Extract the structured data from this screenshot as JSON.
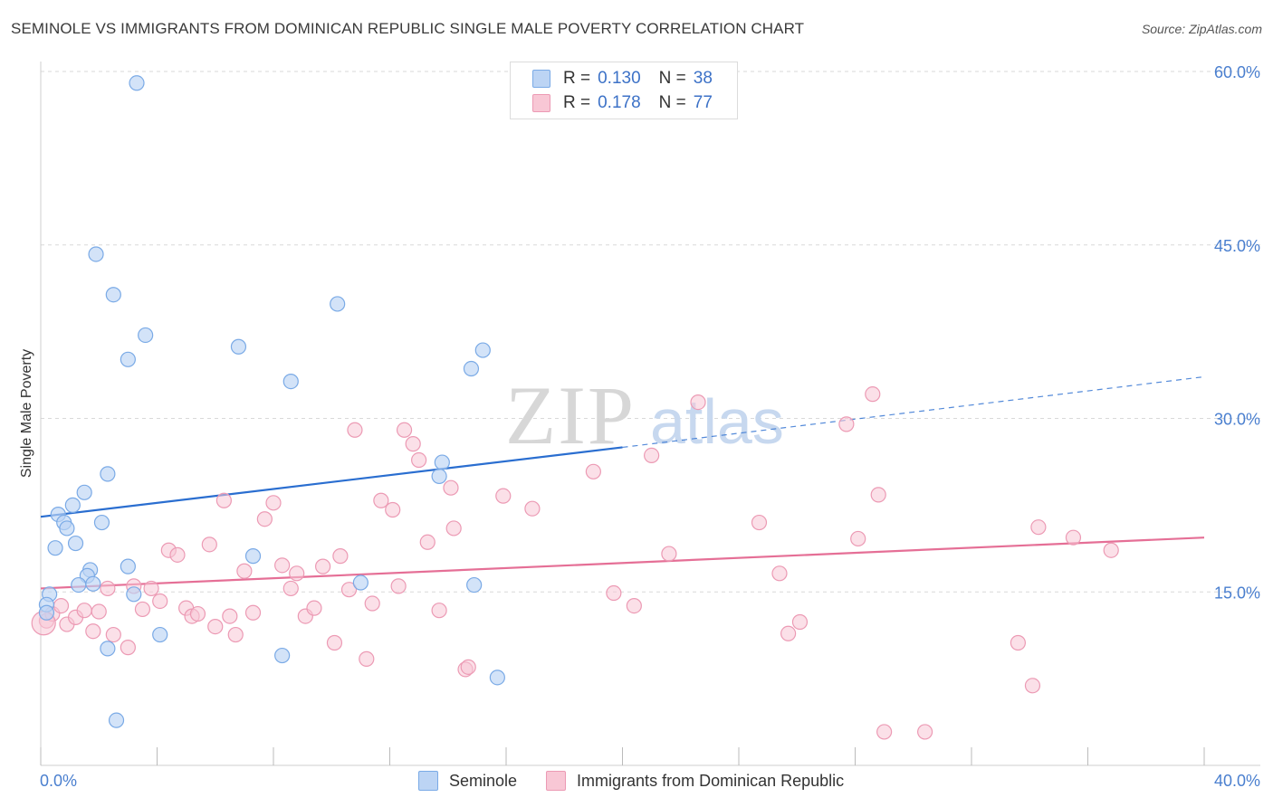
{
  "title": "SEMINOLE VS IMMIGRANTS FROM DOMINICAN REPUBLIC SINGLE MALE POVERTY CORRELATION CHART",
  "source": "Source: ZipAtlas.com",
  "watermark": {
    "zip": "ZIP",
    "atlas": "atlas"
  },
  "legend": {
    "r_label": "R =",
    "n_label": "N =",
    "rows": [
      {
        "r": "0.130",
        "n": "38"
      },
      {
        "r": "0.178",
        "n": "77"
      }
    ]
  },
  "colors": {
    "blue_fill": "#bcd4f4",
    "blue_stroke": "#7aaae6",
    "blue_line": "#2a6ed0",
    "pink_fill": "#f8c7d5",
    "pink_stroke": "#ec9ab4",
    "pink_line": "#e56f96",
    "tick_text": "#4a7fcf",
    "grid": "#d9d9d9"
  },
  "chart_data": {
    "type": "scatter",
    "title": "SEMINOLE VS IMMIGRANTS FROM DOMINICAN REPUBLIC SINGLE MALE POVERTY CORRELATION CHART",
    "xlabel": "",
    "ylabel": "Single Male Poverty",
    "xlim": [
      0,
      40
    ],
    "ylim": [
      0,
      60
    ],
    "x_tick_labels": [
      "0.0%",
      "40.0%"
    ],
    "y_ticks": [
      15,
      30,
      45,
      60
    ],
    "y_tick_labels": [
      "15.0%",
      "30.0%",
      "45.0%",
      "60.0%"
    ],
    "series": [
      {
        "name": "Seminole",
        "r": 0.13,
        "n": 38,
        "trend": {
          "x0": 0,
          "y0": 21.5,
          "x1": 20,
          "y1": 27.5,
          "dash_x1": 40,
          "dash_y1": 33.6
        },
        "points": [
          [
            3.3,
            59.0
          ],
          [
            1.9,
            44.2
          ],
          [
            2.5,
            40.7
          ],
          [
            3.6,
            37.2
          ],
          [
            3.0,
            35.1
          ],
          [
            6.8,
            36.2
          ],
          [
            10.2,
            39.9
          ],
          [
            8.6,
            33.2
          ],
          [
            15.2,
            35.9
          ],
          [
            14.8,
            34.3
          ],
          [
            13.8,
            26.2
          ],
          [
            13.7,
            25.0
          ],
          [
            2.3,
            25.2
          ],
          [
            1.5,
            23.6
          ],
          [
            1.1,
            22.5
          ],
          [
            0.6,
            21.7
          ],
          [
            0.8,
            21.0
          ],
          [
            0.9,
            20.5
          ],
          [
            2.1,
            21.0
          ],
          [
            1.2,
            19.2
          ],
          [
            0.5,
            18.8
          ],
          [
            7.3,
            18.1
          ],
          [
            3.0,
            17.2
          ],
          [
            1.7,
            16.9
          ],
          [
            1.6,
            16.4
          ],
          [
            1.3,
            15.6
          ],
          [
            1.8,
            15.7
          ],
          [
            3.2,
            14.8
          ],
          [
            11.0,
            15.8
          ],
          [
            14.9,
            15.6
          ],
          [
            0.3,
            14.8
          ],
          [
            0.2,
            13.9
          ],
          [
            0.2,
            13.2
          ],
          [
            2.3,
            10.1
          ],
          [
            4.1,
            11.3
          ],
          [
            8.3,
            9.5
          ],
          [
            15.7,
            7.6
          ],
          [
            2.6,
            3.9
          ]
        ]
      },
      {
        "name": "Immigrants from Dominican Republic",
        "r": 0.178,
        "n": 77,
        "trend": {
          "x0": 0,
          "y0": 15.3,
          "x1": 40,
          "y1": 19.7
        },
        "points": [
          [
            0.2,
            12.5
          ],
          [
            0.4,
            13.1
          ],
          [
            0.7,
            13.8
          ],
          [
            0.9,
            12.2
          ],
          [
            1.2,
            12.8
          ],
          [
            1.5,
            13.4
          ],
          [
            1.8,
            11.6
          ],
          [
            2.0,
            13.3
          ],
          [
            2.3,
            15.3
          ],
          [
            2.5,
            11.3
          ],
          [
            3.0,
            10.2
          ],
          [
            3.2,
            15.5
          ],
          [
            3.5,
            13.5
          ],
          [
            3.8,
            15.3
          ],
          [
            4.1,
            14.2
          ],
          [
            4.4,
            18.6
          ],
          [
            4.7,
            18.2
          ],
          [
            5.0,
            13.6
          ],
          [
            5.2,
            12.9
          ],
          [
            5.4,
            13.1
          ],
          [
            5.8,
            19.1
          ],
          [
            6.0,
            12.0
          ],
          [
            6.3,
            22.9
          ],
          [
            6.5,
            12.9
          ],
          [
            6.7,
            11.3
          ],
          [
            7.0,
            16.8
          ],
          [
            7.3,
            13.2
          ],
          [
            7.7,
            21.3
          ],
          [
            8.0,
            22.7
          ],
          [
            8.3,
            17.3
          ],
          [
            8.6,
            15.3
          ],
          [
            8.8,
            16.6
          ],
          [
            9.1,
            12.9
          ],
          [
            9.4,
            13.6
          ],
          [
            9.7,
            17.2
          ],
          [
            10.1,
            10.6
          ],
          [
            10.3,
            18.1
          ],
          [
            10.6,
            15.2
          ],
          [
            10.8,
            29.0
          ],
          [
            11.2,
            9.2
          ],
          [
            11.4,
            14.0
          ],
          [
            11.7,
            22.9
          ],
          [
            12.1,
            22.1
          ],
          [
            12.3,
            15.5
          ],
          [
            12.5,
            29.0
          ],
          [
            12.8,
            27.8
          ],
          [
            13.0,
            26.4
          ],
          [
            13.3,
            19.3
          ],
          [
            13.7,
            13.4
          ],
          [
            14.1,
            24.0
          ],
          [
            14.2,
            20.5
          ],
          [
            14.6,
            8.3
          ],
          [
            14.7,
            8.5
          ],
          [
            15.9,
            23.3
          ],
          [
            16.9,
            22.2
          ],
          [
            19.0,
            25.4
          ],
          [
            19.7,
            14.9
          ],
          [
            20.4,
            13.8
          ],
          [
            21.0,
            26.8
          ],
          [
            21.6,
            18.3
          ],
          [
            22.6,
            31.4
          ],
          [
            24.7,
            21.0
          ],
          [
            25.4,
            16.6
          ],
          [
            25.7,
            11.4
          ],
          [
            26.1,
            12.4
          ],
          [
            27.7,
            29.5
          ],
          [
            28.1,
            19.6
          ],
          [
            28.6,
            32.1
          ],
          [
            28.8,
            23.4
          ],
          [
            29.0,
            2.9
          ],
          [
            30.4,
            2.9
          ],
          [
            33.6,
            10.6
          ],
          [
            34.1,
            6.9
          ],
          [
            34.3,
            20.6
          ],
          [
            35.5,
            19.7
          ],
          [
            36.8,
            18.6
          ],
          [
            0.1,
            12.3
          ]
        ]
      }
    ]
  },
  "bottom_legend": [
    "Seminole",
    "Immigrants from Dominican Republic"
  ]
}
